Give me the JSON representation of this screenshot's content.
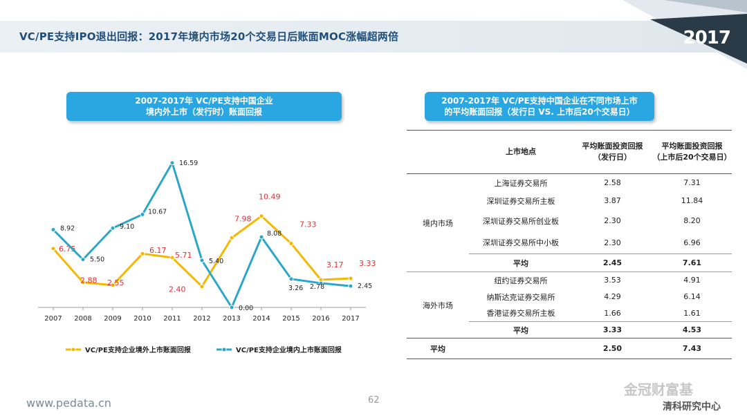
{
  "page": {
    "title": "VC/PE支持IPO退出回报：2017年境内市场20个交易日后账面MOC涨幅超两倍",
    "year_badge": "2017",
    "footer_url": "www.pedata.cn",
    "page_number": "62",
    "watermark": "金冠财富基",
    "watermark_sub": "清科研究中心"
  },
  "chart_panel": {
    "title_line1": "2007-2017年 VC/PE支持中国企业",
    "title_line2": "境内外上市（发行时）账面回报"
  },
  "table_panel": {
    "title_line1": "2007-2017年 VC/PE支持中国企业在不同市场上市",
    "title_line2": "的平均账面回报（发行日 VS. 上市后20个交易日）"
  },
  "chart_data": {
    "type": "line",
    "x": [
      "2007",
      "2008",
      "2009",
      "2010",
      "2011",
      "2012",
      "2013",
      "2014",
      "2015",
      "2016",
      "2017"
    ],
    "series": [
      {
        "name": "VC/PE支持企业境外上市账面回报",
        "color": "#f5b700",
        "label_color": "#e03030",
        "values": [
          6.75,
          2.88,
          2.55,
          6.17,
          5.71,
          2.4,
          7.98,
          10.49,
          7.33,
          3.17,
          3.33
        ],
        "labels": [
          "6.75",
          "2.88",
          "2.55",
          "6.17",
          "5.71",
          "2.40",
          "7.98",
          "10.49",
          "7.33",
          "3.17",
          "3.33"
        ]
      },
      {
        "name": "VC/PE支持企业境内上市账面回报",
        "color": "#2aa6c8",
        "label_color": "#222222",
        "values": [
          8.92,
          5.5,
          9.1,
          10.67,
          16.59,
          5.4,
          0.0,
          8.08,
          3.26,
          2.78,
          2.45
        ],
        "labels": [
          "8.92",
          "5.50",
          "9.10",
          "10.67",
          "16.59",
          "5.40",
          "0.00",
          "8.08",
          "3.26",
          "2.78",
          "2.45"
        ]
      }
    ],
    "ylim": [
      0,
      18
    ],
    "grid": false,
    "legend_position": "bottom"
  },
  "table": {
    "headers": {
      "col_market": "上市地点",
      "col_ipo_day_line1": "平均账面投资回报",
      "col_ipo_day_line2": "（发行日）",
      "col_20day_line1": "平均账面投资回报",
      "col_20day_line2": "（上市后20个交易日）"
    },
    "domestic": {
      "group": "境内市场",
      "rows": [
        {
          "market": "上海证券交易所",
          "ipo": "2.58",
          "d20": "7.31"
        },
        {
          "market": "深圳证券交易所主板",
          "ipo": "3.87",
          "d20": "11.84"
        },
        {
          "market": "深圳证券交易所创业板",
          "ipo": "2.30",
          "d20": "8.20"
        },
        {
          "market": "深圳证券交易所中小板",
          "ipo": "2.30",
          "d20": "6.96"
        }
      ],
      "avg_label": "平均",
      "avg_ipo": "2.45",
      "avg_d20": "7.61"
    },
    "overseas": {
      "group": "海外市场",
      "rows": [
        {
          "market": "纽约证券交易所",
          "ipo": "3.53",
          "d20": "4.91"
        },
        {
          "market": "纳斯达克证券交易所",
          "ipo": "4.29",
          "d20": "6.14"
        },
        {
          "market": "香港证券交易所主板",
          "ipo": "1.66",
          "d20": "1.61"
        }
      ],
      "avg_label": "平均",
      "avg_ipo": "3.33",
      "avg_d20": "4.53"
    },
    "total": {
      "label": "平均",
      "ipo": "2.50",
      "d20": "7.43"
    }
  }
}
